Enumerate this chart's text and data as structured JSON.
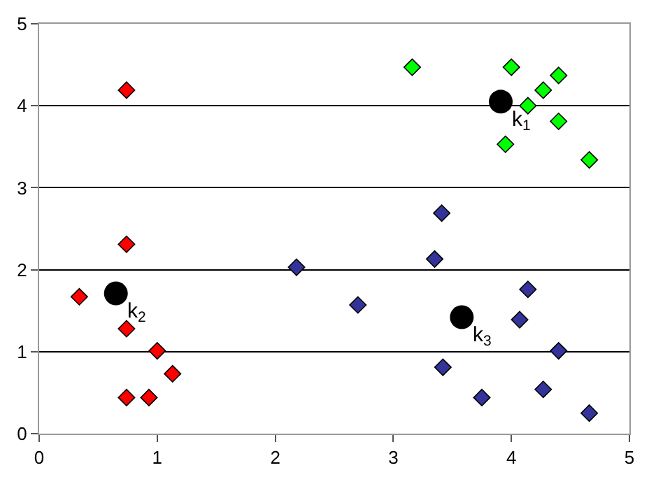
{
  "chart_data": {
    "type": "scatter",
    "marker": "diamond",
    "grid": "y",
    "xlim": [
      0,
      5
    ],
    "ylim": [
      0,
      5
    ],
    "xticks": [
      0,
      1,
      2,
      3,
      4,
      5
    ],
    "yticks": [
      0,
      1,
      2,
      3,
      4,
      5
    ],
    "series": [
      {
        "color": "#ff0000",
        "x": [
          0.74,
          0.74,
          0.34,
          0.74,
          1.0,
          1.13,
          0.74,
          0.93
        ],
        "values": [
          4.19,
          2.31,
          1.67,
          1.28,
          1.01,
          0.73,
          0.44,
          0.44
        ]
      },
      {
        "color": "#333399",
        "x": [
          2.18,
          2.7,
          3.41,
          3.35,
          3.42,
          3.75,
          4.14,
          4.07,
          4.4,
          4.27,
          4.66
        ],
        "values": [
          2.03,
          1.57,
          2.69,
          2.13,
          0.81,
          0.44,
          1.76,
          1.39,
          1.01,
          0.54,
          0.25
        ]
      },
      {
        "color": "#00ff00",
        "x": [
          3.16,
          4.0,
          4.4,
          4.27,
          4.14,
          4.4,
          3.95,
          4.66
        ],
        "values": [
          4.47,
          4.47,
          4.37,
          4.19,
          4.0,
          3.81,
          3.53,
          3.34
        ]
      },
      {
        "color": "#000000",
        "marker": "circle",
        "x": [
          3.91,
          0.65,
          3.58
        ],
        "values": [
          4.05,
          1.71,
          1.42
        ]
      }
    ],
    "annotations": [
      {
        "text": "k$_{1}$",
        "x": 3.91,
        "y": 4.05
      },
      {
        "text": "k$_{2}$",
        "x": 0.65,
        "y": 1.71
      },
      {
        "text": "k$_{3}$",
        "x": 3.58,
        "y": 1.42
      }
    ]
  }
}
